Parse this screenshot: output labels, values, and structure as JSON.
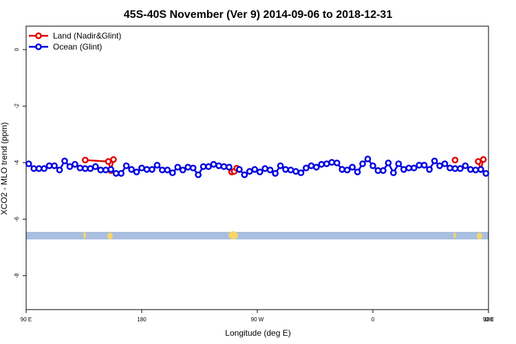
{
  "chart_data": {
    "type": "line",
    "title": "45S-40S November (Ver 9)   2014-09-06 to 2018-12-31",
    "x_label": "Longitude (deg E)",
    "y_label": "XCO2 - MLO trend (ppm)",
    "xlim": [
      90,
      450
    ],
    "ylim": [
      -9.2,
      0.83
    ],
    "xticks": [
      {
        "value": 90,
        "label": "90 E"
      },
      {
        "value": 180,
        "label": "180"
      },
      {
        "value": 270,
        "label": "90 W"
      },
      {
        "value": 360,
        "label": "0"
      },
      {
        "value": 450,
        "label": "90 E"
      },
      {
        "value": 540,
        "label": "180"
      }
    ],
    "yticks": [
      0,
      -2,
      -4,
      -6,
      -8
    ],
    "legend": "top-left",
    "series": [
      {
        "name": "Land (Nadir&Glint)",
        "color": "#e00000",
        "x": [
          136,
          154,
          156,
          158,
          200,
          250,
          252,
          254,
          340,
          424,
          434,
          442,
          444,
          446
        ],
        "values": [
          -3.91,
          -3.96,
          -4.28,
          -3.89,
          null,
          -4.33,
          -4.31,
          -4.2,
          null,
          -3.91,
          null,
          -3.96,
          -4.24,
          -3.89
        ]
      },
      {
        "name": "Ocean (Glint)",
        "color": "#0000e0",
        "x": [
          92,
          96,
          100,
          104,
          108,
          112,
          116,
          120,
          124,
          128,
          132,
          136,
          140,
          144,
          148,
          152,
          156,
          160,
          164,
          168,
          172,
          176,
          180,
          184,
          188,
          192,
          196,
          200,
          204,
          208,
          212,
          216,
          220,
          224,
          228,
          232,
          236,
          240,
          244,
          248,
          252,
          256,
          260,
          264,
          268,
          272,
          276,
          280,
          284,
          288,
          292,
          296,
          300,
          304,
          308,
          312,
          316,
          320,
          324,
          328,
          332,
          336,
          340,
          344,
          348,
          352,
          356,
          360,
          364,
          368,
          372,
          376,
          380,
          384,
          388,
          392,
          396,
          400,
          404,
          408,
          412,
          416,
          420,
          424,
          428,
          432,
          436,
          440,
          444,
          448
        ],
        "values": [
          -4.04,
          -4.21,
          -4.21,
          -4.21,
          -4.11,
          -4.11,
          -4.26,
          -3.94,
          -4.14,
          -4.06,
          -4.19,
          -4.21,
          -4.21,
          -4.14,
          -4.26,
          -4.26,
          -4.24,
          -4.38,
          -4.38,
          -4.11,
          -4.24,
          -4.33,
          -4.19,
          -4.24,
          -4.24,
          -4.09,
          -4.26,
          -4.26,
          -4.36,
          -4.16,
          -4.26,
          -4.16,
          -4.19,
          -4.43,
          -4.14,
          -4.14,
          -4.06,
          -4.11,
          -4.14,
          -4.16,
          null,
          -4.24,
          -4.43,
          -4.31,
          -4.24,
          -4.33,
          -4.21,
          -4.26,
          -4.38,
          -4.11,
          -4.24,
          -4.26,
          -4.31,
          -4.36,
          -4.19,
          -4.11,
          -4.16,
          -4.06,
          -4.04,
          -3.99,
          -4.01,
          -4.24,
          -4.26,
          -4.16,
          -4.33,
          -4.04,
          -3.87,
          -4.11,
          -4.28,
          -4.28,
          -4.01,
          -4.36,
          -4.04,
          -4.24,
          -4.19,
          -4.19,
          -4.09,
          -4.09,
          -4.24,
          -3.94,
          -4.11,
          -4.04,
          -4.19,
          -4.21,
          -4.21,
          -4.11,
          -4.24,
          -4.26,
          -4.24,
          -4.38
        ]
      }
    ]
  }
}
